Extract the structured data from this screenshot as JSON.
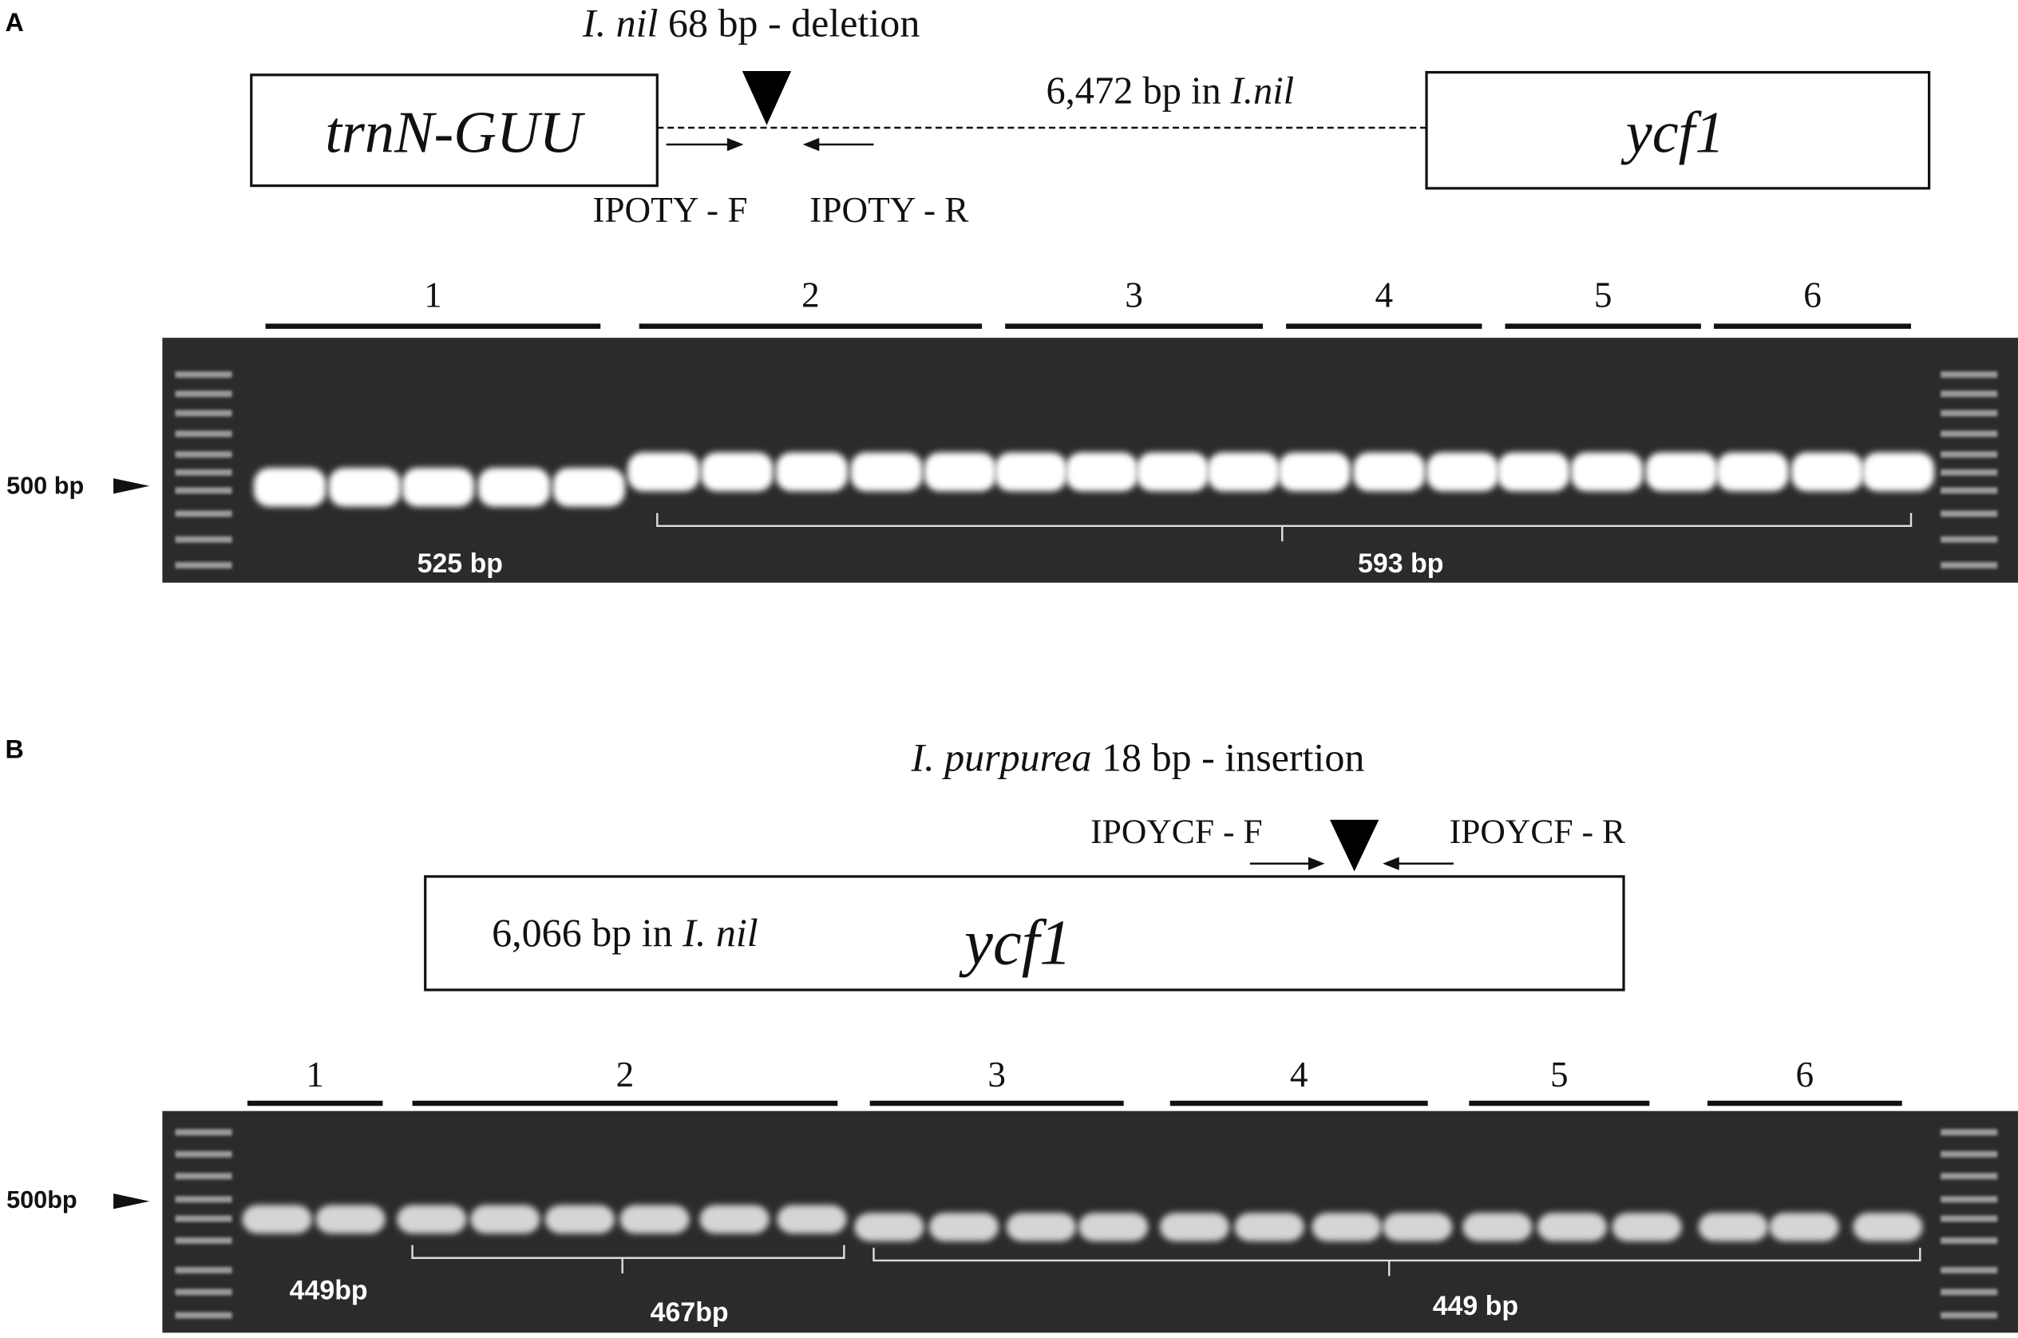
{
  "panel_a": {
    "label": "A",
    "title": {
      "italic": "I. nil",
      "text": "68 bp - deletion"
    },
    "left_gene": "trnN-GUU",
    "span": {
      "text": "6,472 bp in",
      "italic": "I.nil"
    },
    "right_gene": "ycf1",
    "primer_f": "IPOTY - F",
    "primer_r": "IPOTY - R",
    "lanes": [
      "1",
      "2",
      "3",
      "4",
      "5",
      "6"
    ],
    "marker": "500 bp",
    "band_sizes": [
      "525 bp",
      "593 bp"
    ]
  },
  "panel_b": {
    "label": "B",
    "title": {
      "italic": "I. purpurea",
      "text": "18 bp - insertion"
    },
    "primer_f": "IPOYCF - F",
    "primer_r": "IPOYCF - R",
    "span": {
      "text": "6,066 bp in",
      "italic": "I. nil"
    },
    "gene": "ycf1",
    "lanes": [
      "1",
      "2",
      "3",
      "4",
      "5",
      "6"
    ],
    "marker": "500bp",
    "band_sizes": [
      "449bp",
      "467bp",
      "449 bp"
    ]
  }
}
